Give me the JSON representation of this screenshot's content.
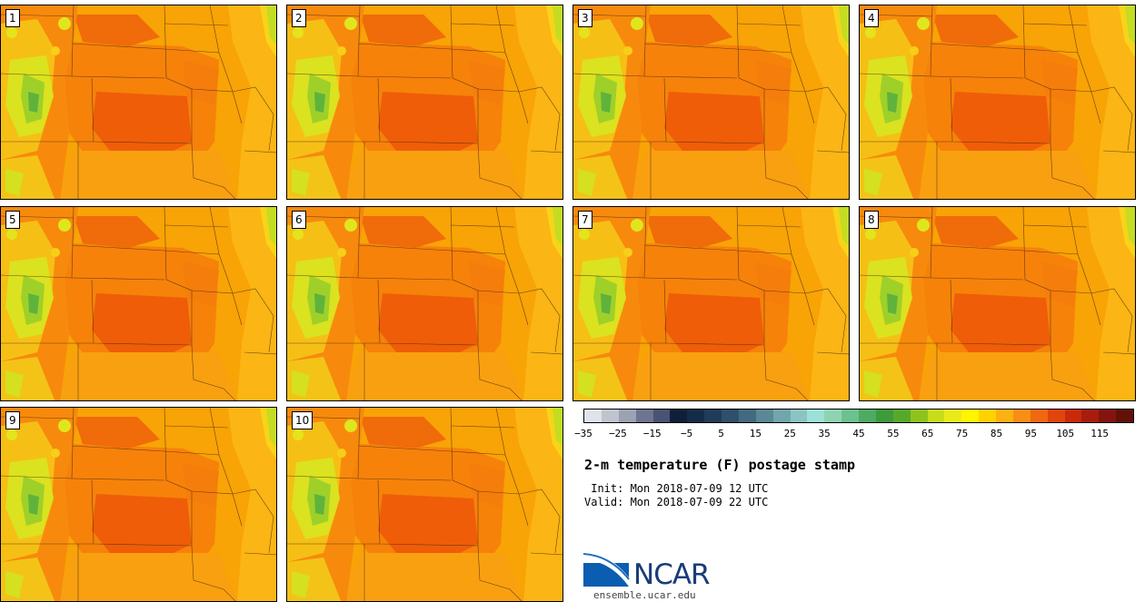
{
  "panels": [
    "1",
    "2",
    "3",
    "4",
    "5",
    "6",
    "7",
    "8",
    "9",
    "10"
  ],
  "colorbar": {
    "colors": [
      "#dfe3ea",
      "#bfc4cf",
      "#9ba2b3",
      "#6d7590",
      "#4a5373",
      "#0f1f3a",
      "#152c48",
      "#203c58",
      "#2f506a",
      "#426a80",
      "#5b8796",
      "#72a6ad",
      "#8bc5c3",
      "#9de1d6",
      "#8ed4b4",
      "#6cc28f",
      "#4eab64",
      "#3f9a3b",
      "#58a92a",
      "#8fc21f",
      "#c7dc1a",
      "#e9ea1c",
      "#fff500",
      "#ffd200",
      "#fdb112",
      "#f88e14",
      "#f06810",
      "#e1440c",
      "#c92a0a",
      "#a81c0c",
      "#84140e",
      "#621008"
    ],
    "tick_labels": [
      "−35",
      "−25",
      "−15",
      "−5",
      "5",
      "15",
      "25",
      "35",
      "45",
      "55",
      "65",
      "75",
      "85",
      "95",
      "105",
      "115"
    ]
  },
  "title": "2-m temperature (F) postage stamp",
  "init": " Init: Mon 2018-07-09 12 UTC",
  "valid": "Valid: Mon 2018-07-09 22 UTC",
  "logo": {
    "name": "NCAR",
    "site": "ensemble.ucar.edu"
  }
}
